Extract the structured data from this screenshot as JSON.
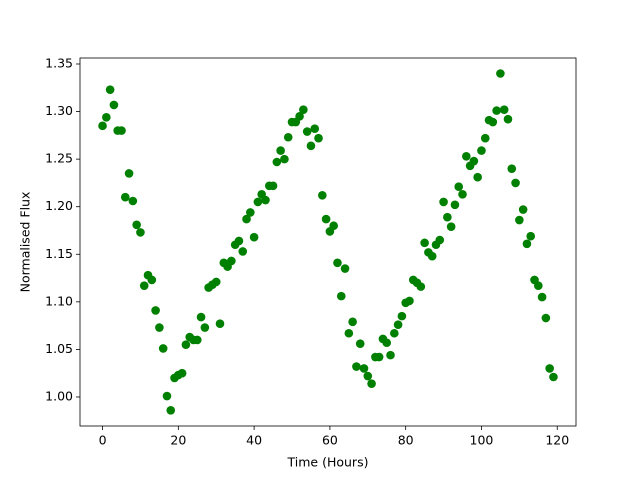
{
  "chart_data": {
    "type": "scatter",
    "x_label": "Time (Hours)",
    "y_label": "Normalised Flux",
    "color": "#008000",
    "x": [
      0,
      1,
      2,
      3,
      4,
      5,
      6,
      7,
      8,
      9,
      10,
      11,
      12,
      13,
      14,
      15,
      16,
      17,
      18,
      19,
      20,
      21,
      22,
      23,
      24,
      25,
      26,
      27,
      28,
      29,
      30,
      31,
      32,
      33,
      34,
      35,
      36,
      37,
      38,
      39,
      40,
      41,
      42,
      43,
      44,
      45,
      46,
      47,
      48,
      49,
      50,
      51,
      52,
      53,
      54,
      55,
      56,
      57,
      58,
      59,
      60,
      61,
      62,
      63,
      64,
      65,
      66,
      67,
      68,
      69,
      70,
      71,
      72,
      73,
      74,
      75,
      76,
      77,
      78,
      79,
      80,
      81,
      82,
      83,
      84,
      85,
      86,
      87,
      88,
      89,
      90,
      91,
      92,
      93,
      94,
      95,
      96,
      97,
      98,
      99,
      100,
      101,
      102,
      103,
      104,
      105,
      106,
      107,
      108,
      109,
      110,
      111,
      112,
      113,
      114,
      115,
      116,
      117,
      118,
      119
    ],
    "values": [
      1.285,
      1.294,
      1.323,
      1.307,
      1.28,
      1.28,
      1.21,
      1.235,
      1.206,
      1.181,
      1.173,
      1.117,
      1.128,
      1.123,
      1.091,
      1.073,
      1.051,
      1.001,
      0.986,
      1.02,
      1.023,
      1.025,
      1.055,
      1.063,
      1.06,
      1.06,
      1.084,
      1.073,
      1.115,
      1.118,
      1.121,
      1.077,
      1.141,
      1.137,
      1.143,
      1.16,
      1.164,
      1.153,
      1.187,
      1.194,
      1.168,
      1.205,
      1.213,
      1.207,
      1.222,
      1.222,
      1.247,
      1.259,
      1.25,
      1.273,
      1.289,
      1.289,
      1.295,
      1.302,
      1.279,
      1.264,
      1.282,
      1.272,
      1.212,
      1.187,
      1.174,
      1.18,
      1.141,
      1.106,
      1.135,
      1.067,
      1.079,
      1.032,
      1.056,
      1.03,
      1.022,
      1.014,
      1.042,
      1.042,
      1.061,
      1.057,
      1.044,
      1.067,
      1.076,
      1.085,
      1.099,
      1.101,
      1.123,
      1.12,
      1.116,
      1.162,
      1.152,
      1.148,
      1.16,
      1.165,
      1.205,
      1.189,
      1.179,
      1.202,
      1.221,
      1.213,
      1.253,
      1.243,
      1.248,
      1.231,
      1.259,
      1.272,
      1.291,
      1.289,
      1.301,
      1.34,
      1.302,
      1.292,
      1.24,
      1.225,
      1.186,
      1.197,
      1.161,
      1.169,
      1.123,
      1.117,
      1.105,
      1.083,
      1.03,
      1.021
    ],
    "xlim": [
      -5.95,
      124.95
    ],
    "xticks": [
      0,
      20,
      40,
      60,
      80,
      100,
      120
    ],
    "ylim": [
      0.9695,
      1.3563
    ],
    "yticks": [
      {
        "value": 1.0,
        "label": "1.00"
      },
      {
        "value": 1.05,
        "label": "1.05"
      },
      {
        "value": 1.1,
        "label": "1.10"
      },
      {
        "value": 1.15,
        "label": "1.15"
      },
      {
        "value": 1.2,
        "label": "1.20"
      },
      {
        "value": 1.25,
        "label": "1.25"
      },
      {
        "value": 1.3,
        "label": "1.30"
      },
      {
        "value": 1.35,
        "label": "1.35"
      }
    ],
    "grid": false
  }
}
